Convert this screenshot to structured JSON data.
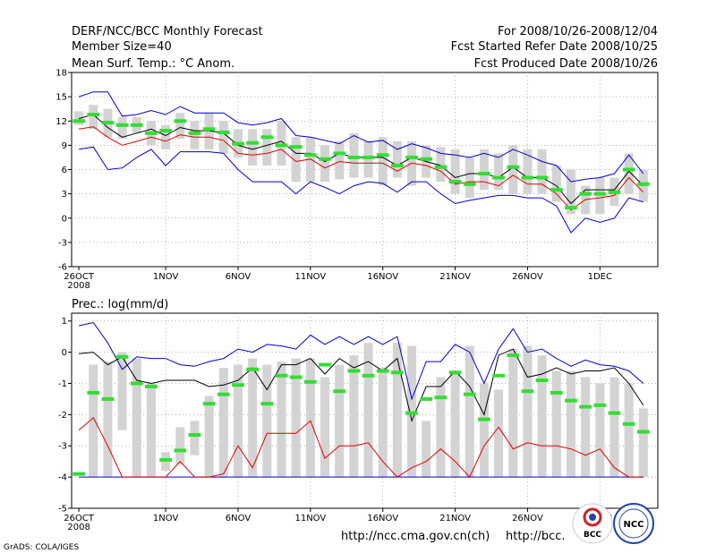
{
  "header": {
    "title": "DERF/NCC/BCC Monthly Forecast",
    "member": "Member Size=40",
    "variable": "Mean Surf. Temp.: °C Anom.",
    "period": "For 2008/10/26-2008/12/04",
    "started": "Fcst Started Refer Date 2008/10/25",
    "produced": "Fcst Produced Date 2008/10/26"
  },
  "footer": {
    "grads": "GrADS: COLA/IGES",
    "url1": "http://ncc.cma.gov.cn(ch)",
    "url2": "http://bcc.",
    "logo_bcc_text": "BCC",
    "logo_ncc_text": "NCC"
  },
  "colors": {
    "box": "#d3d3d3",
    "median": "#33dd33",
    "mean": "#000000",
    "obs": "#dd0000",
    "range": "#0000cc"
  },
  "chart_data": [
    {
      "type": "box-line",
      "title": "Mean Surf. Temp.: °C Anom.",
      "x_tick_labels": [
        "26OCT",
        "1NOV",
        "6NOV",
        "11NOV",
        "16NOV",
        "21NOV",
        "26NOV",
        "1DEC"
      ],
      "x_tick_days": [
        0,
        6,
        11,
        16,
        21,
        26,
        31,
        36
      ],
      "x_year_label": "2008",
      "ylim": [
        -6,
        18
      ],
      "y_ticks": [
        -6,
        -3,
        0,
        3,
        6,
        9,
        12,
        15,
        18
      ],
      "days": 40,
      "box_low": [
        11.5,
        11.0,
        10.0,
        9.8,
        10.5,
        9.0,
        8.5,
        9.8,
        8.5,
        8.5,
        8.0,
        7.5,
        6.5,
        6.5,
        6.5,
        4.5,
        4.5,
        4.5,
        4.8,
        5.0,
        5.0,
        4.0,
        5.0,
        4.0,
        5.0,
        4.5,
        3.0,
        2.5,
        3.5,
        3.5,
        3.0,
        3.0,
        3.0,
        2.0,
        0.5,
        0.5,
        0.5,
        1.5,
        3.0,
        2.0
      ],
      "box_high": [
        13.2,
        14.0,
        13.5,
        12.5,
        12.5,
        12.0,
        11.5,
        13.0,
        12.0,
        13.0,
        12.0,
        11.0,
        11.0,
        11.0,
        12.0,
        10.0,
        10.0,
        9.0,
        9.5,
        10.5,
        9.5,
        10.0,
        9.5,
        9.5,
        9.0,
        8.8,
        8.5,
        7.5,
        8.5,
        8.0,
        9.0,
        8.5,
        8.5,
        6.5,
        6.0,
        4.0,
        5.0,
        5.0,
        8.0,
        6.0
      ],
      "median": [
        12.0,
        12.8,
        11.8,
        11.5,
        11.5,
        10.5,
        10.8,
        12.0,
        10.5,
        11.0,
        10.6,
        9.2,
        9.3,
        10.0,
        9.0,
        8.8,
        7.8,
        7.3,
        8.0,
        7.5,
        7.5,
        7.8,
        6.5,
        7.5,
        7.3,
        6.3,
        4.5,
        4.2,
        5.5,
        5.0,
        6.3,
        5.0,
        5.0,
        3.5,
        1.3,
        3.0,
        3.0,
        3.2,
        6.0,
        4.2
      ],
      "mean": [
        12.3,
        12.8,
        11.2,
        10.0,
        10.5,
        11.0,
        10.2,
        11.2,
        10.8,
        10.8,
        10.5,
        9.0,
        8.5,
        9.0,
        9.5,
        8.0,
        8.0,
        7.0,
        8.0,
        7.5,
        7.5,
        7.5,
        6.5,
        7.5,
        7.0,
        6.5,
        5.0,
        5.5,
        5.5,
        5.0,
        6.3,
        5.0,
        5.0,
        4.0,
        1.8,
        3.5,
        3.5,
        3.5,
        5.8,
        4.0
      ],
      "obs": [
        11.0,
        11.3,
        10.0,
        9.0,
        9.5,
        10.0,
        9.5,
        10.3,
        10.0,
        10.0,
        9.6,
        8.0,
        7.8,
        8.0,
        8.5,
        7.0,
        7.3,
        6.2,
        7.0,
        6.8,
        6.8,
        6.8,
        5.8,
        6.8,
        6.5,
        5.8,
        4.2,
        4.5,
        4.5,
        4.0,
        5.3,
        4.2,
        4.2,
        3.0,
        1.0,
        2.3,
        2.5,
        2.8,
        5.0,
        3.2
      ],
      "max": [
        15.0,
        15.6,
        15.6,
        12.6,
        12.8,
        13.3,
        12.8,
        13.8,
        13.0,
        13.0,
        13.0,
        11.8,
        11.5,
        11.8,
        12.3,
        10.2,
        10.0,
        9.6,
        9.2,
        10.2,
        9.4,
        9.6,
        8.5,
        9.2,
        8.7,
        8.0,
        7.8,
        7.5,
        8.0,
        7.5,
        8.5,
        7.8,
        7.0,
        6.5,
        4.5,
        4.8,
        5.0,
        5.5,
        7.8,
        5.5
      ],
      "min": [
        8.5,
        8.8,
        6.0,
        6.2,
        7.5,
        8.5,
        6.5,
        8.2,
        8.2,
        8.2,
        8.0,
        6.0,
        4.5,
        4.5,
        4.5,
        3.0,
        4.5,
        3.8,
        3.0,
        4.0,
        4.5,
        4.3,
        3.2,
        4.5,
        4.5,
        3.0,
        1.8,
        2.2,
        2.5,
        2.8,
        2.8,
        2.5,
        2.5,
        1.5,
        -1.8,
        0.0,
        -0.5,
        0.0,
        2.5,
        2.0
      ]
    },
    {
      "type": "box-line",
      "title": "Prec.: log(mm/d)",
      "x_tick_labels": [
        "26OCT",
        "1NOV",
        "6NOV",
        "11NOV",
        "16NOV",
        "21NOV",
        "26NOV",
        "1DEC"
      ],
      "x_tick_days": [
        0,
        6,
        11,
        16,
        21,
        26,
        31,
        36
      ],
      "x_year_label": "2008",
      "ylim": [
        -5,
        1.25
      ],
      "y_ticks": [
        -5,
        -4,
        -3,
        -2,
        -1,
        0,
        1
      ],
      "days": 40,
      "box_low": [
        -4.0,
        -4.0,
        -4.0,
        -2.5,
        -4.0,
        -4.0,
        -3.8,
        -3.6,
        -3.3,
        -4.0,
        -4.0,
        -4.0,
        -4.0,
        -4.0,
        -4.0,
        -4.0,
        -4.0,
        -4.0,
        -4.0,
        -4.0,
        -4.0,
        -4.0,
        -4.0,
        -4.0,
        -4.0,
        -4.0,
        -4.0,
        -4.0,
        -4.0,
        -4.0,
        -4.0,
        -4.0,
        -4.0,
        -4.0,
        -4.0,
        -4.0,
        -4.0,
        -4.0,
        -4.0,
        -4.0
      ],
      "box_high": [
        -4.0,
        -0.4,
        -0.3,
        0.0,
        -0.2,
        -1.0,
        -3.2,
        -2.4,
        -2.2,
        -1.4,
        -0.5,
        -0.4,
        -0.2,
        -0.4,
        -0.3,
        -0.2,
        -0.2,
        -0.8,
        -0.4,
        -0.1,
        0.3,
        -0.5,
        0.3,
        0.2,
        -2.2,
        -0.8,
        -0.6,
        0.2,
        -1.0,
        -1.2,
        0.1,
        0.2,
        -0.1,
        -0.6,
        -0.6,
        -0.8,
        -1.0,
        -0.8,
        -1.0,
        -1.8
      ],
      "median": [
        -3.9,
        -1.3,
        -1.5,
        -0.15,
        -1.0,
        -1.1,
        -3.45,
        -3.15,
        -2.65,
        -1.65,
        -1.35,
        -1.05,
        -0.55,
        -1.65,
        -0.75,
        -0.8,
        -0.95,
        -0.4,
        -1.25,
        -0.6,
        -0.75,
        -0.6,
        -0.65,
        -1.95,
        -1.5,
        -1.45,
        -0.65,
        -1.35,
        -2.15,
        -0.75,
        -0.1,
        -1.25,
        -0.9,
        -1.3,
        -1.55,
        -1.75,
        -1.7,
        -1.95,
        -2.3,
        -2.55
      ],
      "mean": [
        -0.05,
        0.0,
        -0.4,
        -0.15,
        -0.9,
        -1.0,
        -0.9,
        -0.9,
        -0.9,
        -1.1,
        -1.05,
        -0.9,
        -0.5,
        -1.2,
        -0.4,
        -0.4,
        -0.2,
        -0.7,
        -0.2,
        -0.5,
        -0.3,
        -0.6,
        -0.2,
        -2.2,
        -1.1,
        -1.1,
        -0.6,
        -1.1,
        -2.0,
        -0.1,
        0.1,
        -0.8,
        -0.7,
        -0.5,
        -0.7,
        -0.6,
        -0.6,
        -0.5,
        -1.0,
        -1.7
      ],
      "obs": [
        -2.5,
        -2.1,
        -3.0,
        -4.0,
        -4.0,
        -4.0,
        -4.0,
        -3.5,
        -4.0,
        -4.0,
        -3.9,
        -3.0,
        -3.7,
        -2.6,
        -2.6,
        -2.6,
        -2.2,
        -3.4,
        -3.0,
        -3.0,
        -2.9,
        -3.5,
        -4.0,
        -3.7,
        -3.5,
        -3.1,
        -3.5,
        -4.0,
        -3.0,
        -2.4,
        -3.1,
        -2.9,
        -3.0,
        -3.0,
        -3.1,
        -3.3,
        -3.1,
        -3.7,
        -4.0,
        -4.0
      ],
      "max": [
        0.85,
        0.95,
        0.3,
        -0.55,
        -0.15,
        -0.2,
        -0.2,
        -0.4,
        -0.45,
        -0.3,
        -0.2,
        0.1,
        0.0,
        0.25,
        0.2,
        0.1,
        0.55,
        0.25,
        0.5,
        0.25,
        0.5,
        0.25,
        0.5,
        -1.5,
        -0.3,
        -0.3,
        0.25,
        0.0,
        -1.0,
        0.1,
        0.75,
        0.0,
        0.1,
        -0.2,
        -0.45,
        -0.25,
        -0.4,
        -0.45,
        -0.6,
        -1.0
      ],
      "min": [
        -4.0,
        -4.0,
        -4.0,
        -4.0,
        -4.0,
        -4.0,
        -4.0,
        -4.0,
        -4.0,
        -4.0,
        -4.0,
        -4.0,
        -4.0,
        -4.0,
        -4.0,
        -4.0,
        -4.0,
        -4.0,
        -4.0,
        -4.0,
        -4.0,
        -4.0,
        -4.0,
        -4.0,
        -4.0,
        -4.0,
        -4.0,
        -4.0,
        -4.0,
        -4.0,
        -4.0,
        -4.0,
        -4.0,
        -4.0,
        -4.0,
        -4.0,
        -4.0,
        -4.0,
        -4.0,
        -4.0
      ]
    }
  ]
}
